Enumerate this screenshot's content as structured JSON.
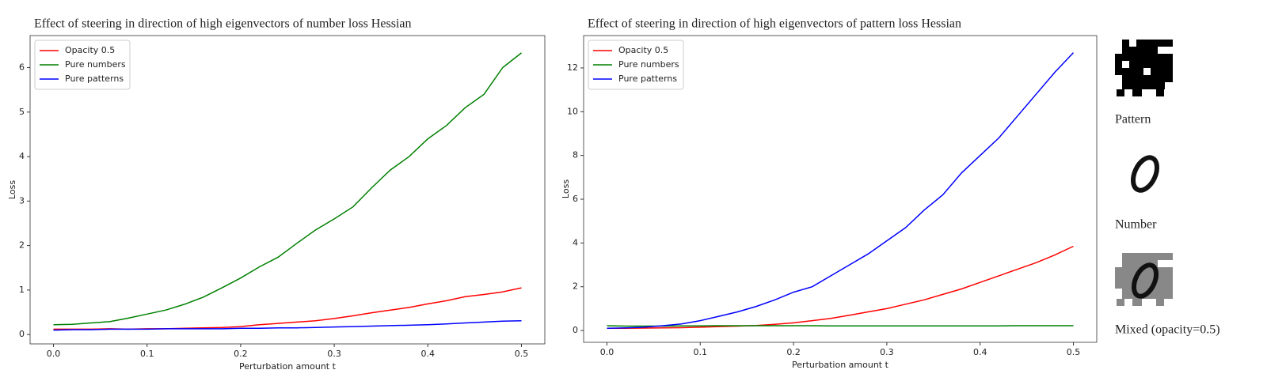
{
  "chart_data": [
    {
      "type": "line",
      "title": "Effect of steering in direction of high eigenvectors of number loss Hessian",
      "x_label": "Perturbation amount t",
      "y_label": "Loss",
      "x": [
        0,
        0.02,
        0.04,
        0.06,
        0.08,
        0.1,
        0.12,
        0.14,
        0.16,
        0.18,
        0.2,
        0.22,
        0.24,
        0.26,
        0.28,
        0.3,
        0.32,
        0.34,
        0.36,
        0.38,
        0.4,
        0.42,
        0.44,
        0.46,
        0.48,
        0.5
      ],
      "series": [
        {
          "name": "Opacity 0.5",
          "color": "#ff0000",
          "values": [
            0.12,
            0.12,
            0.12,
            0.13,
            0.12,
            0.13,
            0.13,
            0.14,
            0.15,
            0.16,
            0.18,
            0.22,
            0.25,
            0.28,
            0.31,
            0.36,
            0.42,
            0.49,
            0.55,
            0.61,
            0.69,
            0.76,
            0.85,
            0.9,
            0.96,
            1.05
          ]
        },
        {
          "name": "Pure numbers",
          "color": "#008000",
          "values": [
            0.22,
            0.23,
            0.26,
            0.29,
            0.37,
            0.46,
            0.55,
            0.68,
            0.84,
            1.05,
            1.27,
            1.52,
            1.74,
            2.05,
            2.35,
            2.6,
            2.87,
            3.3,
            3.7,
            4.0,
            4.4,
            4.7,
            5.1,
            5.4,
            6.0,
            6.33
          ]
        },
        {
          "name": "Pure patterns",
          "color": "#0000ff",
          "values": [
            0.1,
            0.11,
            0.11,
            0.12,
            0.12,
            0.12,
            0.13,
            0.13,
            0.13,
            0.13,
            0.14,
            0.14,
            0.15,
            0.15,
            0.16,
            0.17,
            0.18,
            0.19,
            0.2,
            0.21,
            0.22,
            0.24,
            0.26,
            0.28,
            0.3,
            0.31
          ]
        }
      ],
      "xlim": [
        -0.025,
        0.525
      ],
      "xticks": [
        {
          "value": 0,
          "label": "0.0"
        },
        0.1,
        0.2,
        0.3,
        0.4,
        0.5
      ],
      "ylim": [
        -0.21,
        6.72
      ],
      "yticks": [
        0,
        1,
        2,
        3,
        4,
        5,
        6
      ],
      "legend": "upper left"
    },
    {
      "type": "line",
      "title": "Effect of steering in direction of high eigenvectors of pattern loss Hessian",
      "x_label": "Perturbation amount t",
      "y_label": "Loss",
      "x": [
        0,
        0.02,
        0.04,
        0.06,
        0.08,
        0.1,
        0.12,
        0.14,
        0.16,
        0.18,
        0.2,
        0.22,
        0.24,
        0.26,
        0.28,
        0.3,
        0.32,
        0.34,
        0.36,
        0.38,
        0.4,
        0.42,
        0.44,
        0.46,
        0.48,
        0.5
      ],
      "series": [
        {
          "name": "Opacity 0.5",
          "color": "#ff0000",
          "values": [
            0.1,
            0.1,
            0.11,
            0.12,
            0.13,
            0.15,
            0.18,
            0.2,
            0.23,
            0.28,
            0.35,
            0.45,
            0.55,
            0.7,
            0.85,
            1.0,
            1.2,
            1.4,
            1.65,
            1.9,
            2.2,
            2.5,
            2.8,
            3.1,
            3.45,
            3.85
          ]
        },
        {
          "name": "Pure numbers",
          "color": "#008000",
          "values": [
            0.22,
            0.2,
            0.2,
            0.2,
            0.21,
            0.21,
            0.22,
            0.22,
            0.22,
            0.22,
            0.22,
            0.22,
            0.21,
            0.21,
            0.21,
            0.21,
            0.21,
            0.21,
            0.21,
            0.21,
            0.21,
            0.21,
            0.22,
            0.22,
            0.22,
            0.22
          ]
        },
        {
          "name": "Pure patterns",
          "color": "#0000ff",
          "values": [
            0.1,
            0.12,
            0.15,
            0.22,
            0.3,
            0.45,
            0.65,
            0.85,
            1.1,
            1.4,
            1.75,
            2.0,
            2.5,
            3.0,
            3.5,
            4.1,
            4.7,
            5.5,
            6.2,
            7.2,
            8.0,
            8.8,
            9.8,
            10.8,
            11.8,
            12.7
          ]
        }
      ],
      "xlim": [
        -0.025,
        0.525
      ],
      "xticks": [
        {
          "value": 0,
          "label": "0.0"
        },
        0.1,
        0.2,
        0.3,
        0.4,
        0.5
      ],
      "ylim": [
        -0.54,
        13.48
      ],
      "yticks": [
        0,
        2,
        4,
        6,
        8,
        10,
        12
      ],
      "legend": "upper left"
    }
  ],
  "side_panel": {
    "labels": [
      "Pattern",
      "Number",
      "Mixed (opacity=0.5)"
    ]
  }
}
